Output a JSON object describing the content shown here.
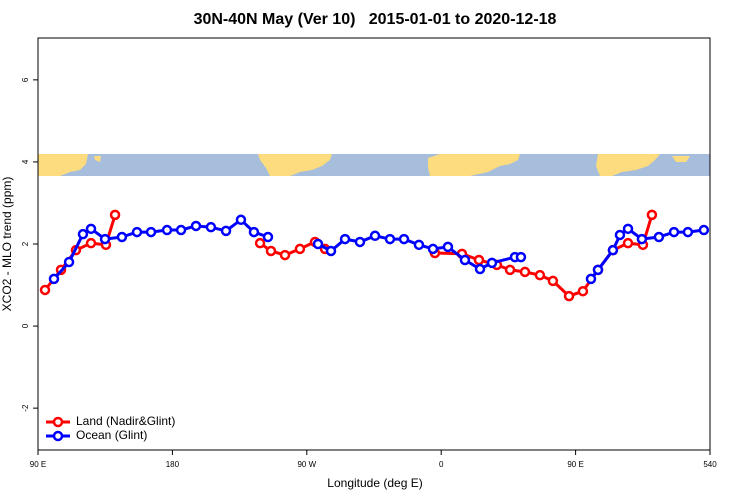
{
  "chart_data": {
    "type": "line",
    "title": "30N-40N May (Ver 10)   2015-01-01 to 2020-12-18",
    "x_label": "Longitude (deg E)",
    "y_label": "XCO2 - MLO trend (ppm)",
    "xlim": [
      90,
      540
    ],
    "ylim": [
      -3.02,
      7.02
    ],
    "xticks": [
      {
        "value": 90,
        "label": "90 E"
      },
      180,
      {
        "value": 270,
        "label": "90 W"
      },
      {
        "value": 360,
        "label": "0"
      },
      {
        "value": 450,
        "label": "90 E"
      },
      540
    ],
    "yticks": [
      -2,
      0,
      2,
      4,
      6
    ],
    "legend": "bottom-left",
    "series": [
      {
        "name": "Land (Nadir&Glint)",
        "color": "#ff0000",
        "x": [
          94.7,
          105.4,
          115.4,
          125.5,
          135.5,
          141.6,
          null,
          238.7,
          246.0,
          255.4,
          265.4,
          275.5,
          282.2,
          null,
          355.8,
          373.9,
          385.3,
          397.3,
          406.1,
          416.1,
          426.1,
          434.8,
          445.6,
          454.9,
          465.0,
          475.0,
          485.1,
          495.1,
          501.1
        ],
        "values": [
          0.88,
          1.37,
          1.85,
          2.02,
          1.98,
          2.71,
          null,
          2.02,
          1.83,
          1.73,
          1.88,
          2.05,
          1.88,
          null,
          1.78,
          1.76,
          1.61,
          1.49,
          1.37,
          1.32,
          1.24,
          1.1,
          0.73,
          0.85,
          1.37,
          1.85,
          2.02,
          1.98,
          2.71
        ]
      },
      {
        "name": "Ocean (Glint)",
        "color": "#0000ff",
        "x": [
          100.7,
          110.8,
          120.1,
          125.5,
          134.9,
          146.2,
          156.3,
          165.7,
          176.4,
          185.8,
          195.8,
          205.8,
          215.9,
          225.9,
          234.6,
          244.0,
          null,
          277.5,
          286.2,
          295.6,
          305.6,
          315.7,
          325.7,
          335.1,
          345.1,
          354.5,
          364.5,
          375.9,
          386.0,
          394.0,
          409.4,
          413.4,
          null,
          460.3,
          465.0,
          475.0,
          479.7,
          485.1,
          494.4,
          505.8,
          515.9,
          525.2,
          535.9
        ],
        "values": [
          1.15,
          1.56,
          2.24,
          2.37,
          2.12,
          2.17,
          2.29,
          2.29,
          2.34,
          2.34,
          2.44,
          2.41,
          2.32,
          2.59,
          2.29,
          2.17,
          null,
          2.0,
          1.83,
          2.12,
          2.05,
          2.2,
          2.12,
          2.12,
          1.98,
          1.88,
          1.93,
          1.61,
          1.39,
          1.54,
          1.68,
          1.68,
          null,
          1.15,
          1.37,
          1.85,
          2.22,
          2.37,
          2.12,
          2.17,
          2.29,
          2.29,
          2.34
        ]
      }
    ]
  }
}
